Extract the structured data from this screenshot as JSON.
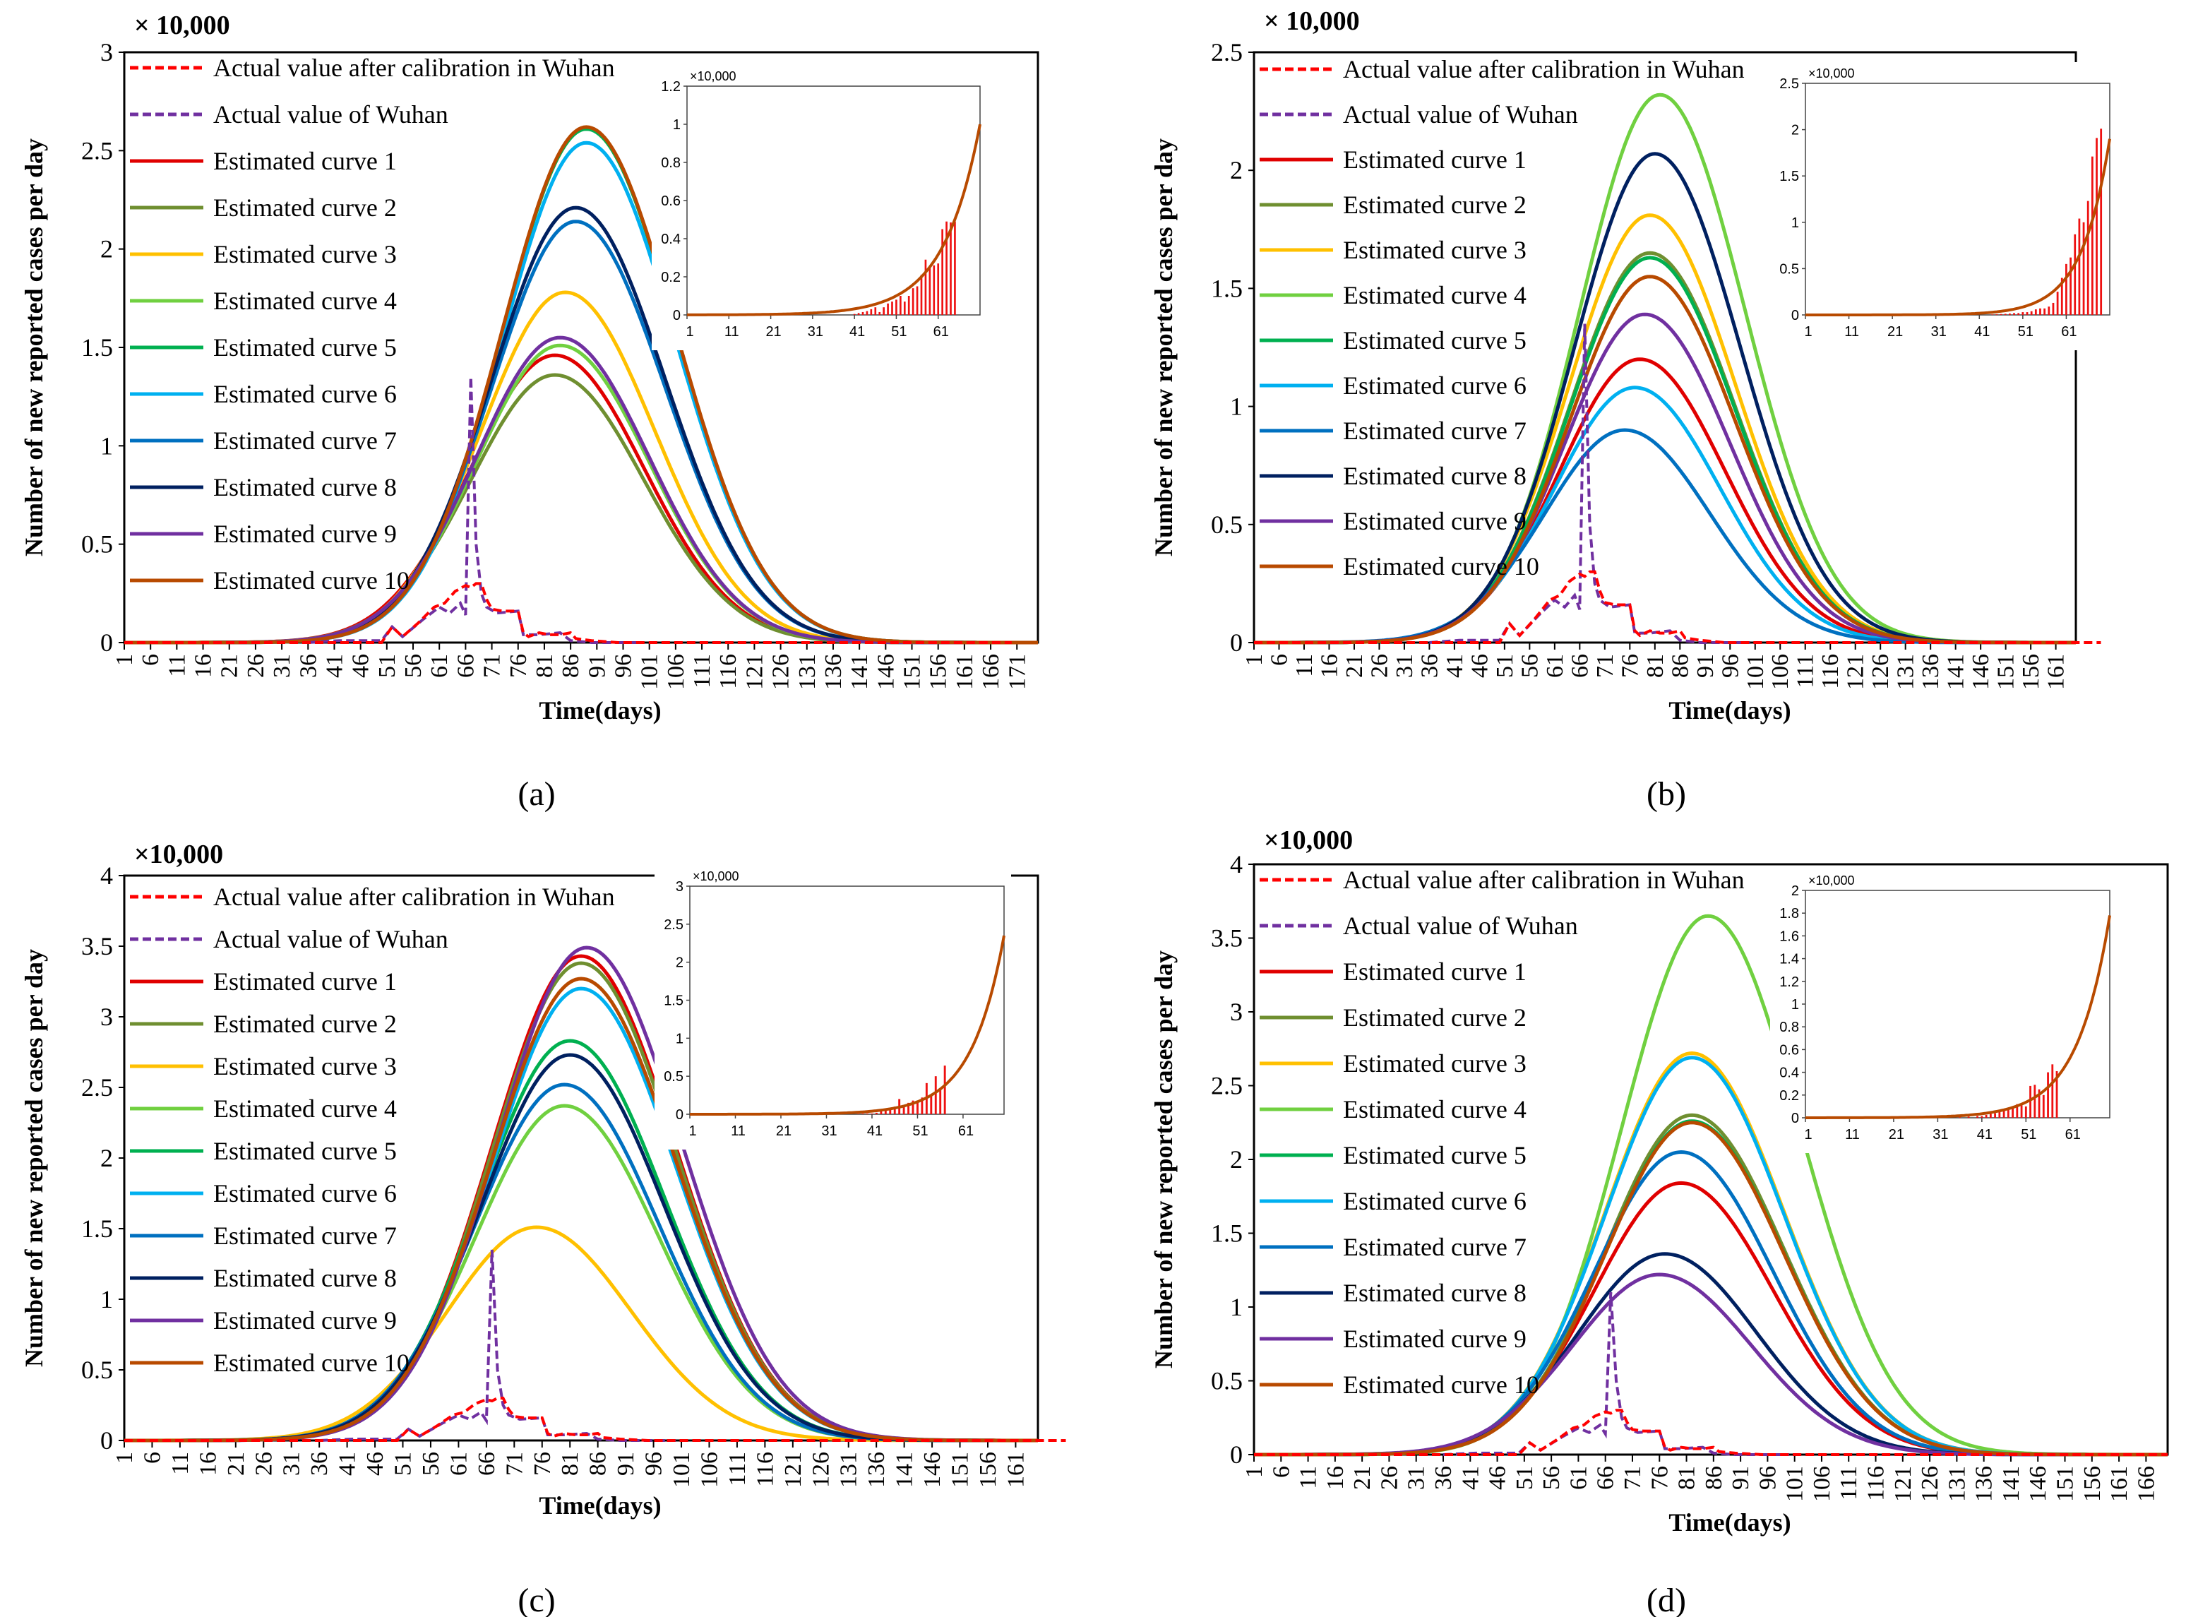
{
  "legend_labels": [
    "Actual value after calibration in Wuhan",
    "Actual value of Wuhan",
    "Estimated curve 1",
    "Estimated curve 2",
    "Estimated curve 3",
    "Estimated curve 4",
    "Estimated curve 5",
    "Estimated curve 6",
    "Estimated curve 7",
    "Estimated curve 8",
    "Estimated curve 9",
    "Estimated curve 10"
  ],
  "colors": {
    "calibrated": "#ff0000",
    "actual": "#7030a0",
    "curves": [
      "#e00000",
      "#6f8f30",
      "#ffc000",
      "#70d040",
      "#00b050",
      "#00b0f0",
      "#0070c0",
      "#002060",
      "#7030a0",
      "#b84a00"
    ],
    "bars": "#ee1111"
  },
  "chart_data": [
    {
      "type": "line",
      "panel": "(a)",
      "scale_label": "× 10,000",
      "xlabel": "Time(days)",
      "ylabel": "Number of new reported cases per day",
      "xlim": [
        1,
        175
      ],
      "ylim": [
        0,
        3
      ],
      "yticks": [
        "0",
        "0.5",
        "1",
        "1.5",
        "2",
        "2.5",
        "3"
      ],
      "xticks": [
        1,
        6,
        11,
        16,
        21,
        26,
        31,
        36,
        41,
        46,
        51,
        56,
        61,
        66,
        71,
        76,
        81,
        86,
        91,
        96,
        101,
        106,
        111,
        116,
        121,
        126,
        131,
        136,
        141,
        146,
        151,
        156,
        161,
        166,
        171
      ],
      "estimated_peaks": [
        {
          "day": 83,
          "value": 1.46
        },
        {
          "day": 83,
          "value": 1.36
        },
        {
          "day": 85,
          "value": 1.78
        },
        {
          "day": 84,
          "value": 1.51
        },
        {
          "day": 89,
          "value": 2.61
        },
        {
          "day": 89,
          "value": 2.54
        },
        {
          "day": 87,
          "value": 2.14
        },
        {
          "day": 87,
          "value": 2.21
        },
        {
          "day": 84,
          "value": 1.55
        },
        {
          "day": 89,
          "value": 2.62
        }
      ],
      "spike": 1.35,
      "inset": {
        "scale_label": "×10,000",
        "ylim": [
          0,
          1.2
        ],
        "yticks": [
          "0",
          "0.2",
          "0.4",
          "0.6",
          "0.8",
          "1",
          "1.2"
        ],
        "xlim": [
          1,
          71
        ],
        "xticks": [
          1,
          11,
          21,
          31,
          41,
          51,
          61
        ],
        "curve_end": 1.0,
        "growth": 0.115,
        "bars": [
          [
            41,
            0.005
          ],
          [
            42,
            0.01
          ],
          [
            43,
            0.015
          ],
          [
            44,
            0.02
          ],
          [
            45,
            0.03
          ],
          [
            46,
            0.04
          ],
          [
            47,
            0.015
          ],
          [
            48,
            0.04
          ],
          [
            49,
            0.06
          ],
          [
            50,
            0.07
          ],
          [
            51,
            0.08
          ],
          [
            52,
            0.1
          ],
          [
            53,
            0.07
          ],
          [
            54,
            0.1
          ],
          [
            55,
            0.14
          ],
          [
            56,
            0.15
          ],
          [
            57,
            0.21
          ],
          [
            58,
            0.29
          ],
          [
            59,
            0.25
          ],
          [
            60,
            0.26
          ],
          [
            61,
            0.27
          ],
          [
            62,
            0.45
          ],
          [
            63,
            0.49
          ],
          [
            64,
            0.485
          ],
          [
            65,
            0.49
          ]
        ]
      }
    },
    {
      "type": "line",
      "panel": "(b)",
      "scale_label": "× 10,000",
      "xlabel": "Time(days)",
      "ylabel": "Number of new reported cases per day",
      "xlim": [
        1,
        165
      ],
      "ylim": [
        0,
        2.5
      ],
      "yticks": [
        "0",
        "0.5",
        "1",
        "1.5",
        "2",
        "2.5"
      ],
      "xticks": [
        1,
        6,
        11,
        16,
        21,
        26,
        31,
        36,
        41,
        46,
        51,
        56,
        61,
        66,
        71,
        76,
        81,
        86,
        91,
        96,
        101,
        106,
        111,
        116,
        121,
        126,
        131,
        136,
        141,
        146,
        151,
        156,
        161
      ],
      "estimated_peaks": [
        {
          "day": 78,
          "value": 1.2
        },
        {
          "day": 80,
          "value": 1.65
        },
        {
          "day": 80,
          "value": 1.81
        },
        {
          "day": 82,
          "value": 2.32
        },
        {
          "day": 80,
          "value": 1.63
        },
        {
          "day": 77,
          "value": 1.08
        },
        {
          "day": 75,
          "value": 0.9
        },
        {
          "day": 81,
          "value": 2.07
        },
        {
          "day": 79,
          "value": 1.39
        },
        {
          "day": 80,
          "value": 1.55
        }
      ],
      "spike": 1.35,
      "inset": {
        "scale_label": "×10,000",
        "ylim": [
          0,
          2.5
        ],
        "yticks": [
          "0",
          "0.5",
          "1",
          "1.5",
          "2",
          "2.5"
        ],
        "xlim": [
          1,
          71
        ],
        "xticks": [
          1,
          11,
          21,
          31,
          41,
          51,
          61
        ],
        "curve_end": 1.9,
        "growth": 0.155,
        "bars": [
          [
            44,
            0.005
          ],
          [
            45,
            0.007
          ],
          [
            46,
            0.01
          ],
          [
            47,
            0.012
          ],
          [
            48,
            0.015
          ],
          [
            49,
            0.02
          ],
          [
            50,
            0.02
          ],
          [
            51,
            0.03
          ],
          [
            52,
            0.03
          ],
          [
            53,
            0.04
          ],
          [
            54,
            0.06
          ],
          [
            55,
            0.07
          ],
          [
            56,
            0.07
          ],
          [
            57,
            0.09
          ],
          [
            58,
            0.13
          ],
          [
            59,
            0.25
          ],
          [
            60,
            0.4
          ],
          [
            61,
            0.55
          ],
          [
            62,
            0.62
          ],
          [
            63,
            0.87
          ],
          [
            64,
            1.04
          ],
          [
            65,
            1.0
          ],
          [
            66,
            1.23
          ],
          [
            67,
            1.71
          ],
          [
            68,
            1.91
          ],
          [
            69,
            2.01
          ]
        ]
      }
    },
    {
      "type": "line",
      "panel": "(c)",
      "scale_label": "×10,000",
      "xlabel": "Time(days)",
      "ylabel": "Number of new reported cases per day",
      "xlim": [
        1,
        165
      ],
      "ylim": [
        0,
        4
      ],
      "yticks": [
        "0",
        "0.5",
        "1",
        "1.5",
        "2",
        "2.5",
        "3",
        "3.5",
        "4"
      ],
      "xticks": [
        1,
        6,
        11,
        16,
        21,
        26,
        31,
        36,
        41,
        46,
        51,
        56,
        61,
        66,
        71,
        76,
        81,
        86,
        91,
        96,
        101,
        106,
        111,
        116,
        121,
        126,
        131,
        136,
        141,
        146,
        151,
        156,
        161
      ],
      "estimated_peaks": [
        {
          "day": 83,
          "value": 3.43
        },
        {
          "day": 83,
          "value": 3.38
        },
        {
          "day": 75,
          "value": 1.51
        },
        {
          "day": 80,
          "value": 2.37
        },
        {
          "day": 81,
          "value": 2.83
        },
        {
          "day": 83,
          "value": 3.2
        },
        {
          "day": 80,
          "value": 2.52
        },
        {
          "day": 81,
          "value": 2.73
        },
        {
          "day": 84,
          "value": 3.49
        },
        {
          "day": 83,
          "value": 3.27
        }
      ],
      "spike": 1.35,
      "inset": {
        "scale_label": "×10,000",
        "ylim": [
          0,
          3
        ],
        "yticks": [
          "0",
          "0.5",
          "1",
          "1.5",
          "2",
          "2.5",
          "3"
        ],
        "xlim": [
          1,
          70
        ],
        "xticks": [
          1,
          11,
          21,
          31,
          41,
          51,
          61
        ],
        "curve_end": 2.35,
        "growth": 0.14,
        "bars": [
          [
            38,
            0.005
          ],
          [
            39,
            0.008
          ],
          [
            40,
            0.01
          ],
          [
            41,
            0.01
          ],
          [
            42,
            0.02
          ],
          [
            43,
            0.04
          ],
          [
            44,
            0.06
          ],
          [
            45,
            0.06
          ],
          [
            46,
            0.1
          ],
          [
            47,
            0.2
          ],
          [
            48,
            0.12
          ],
          [
            49,
            0.15
          ],
          [
            50,
            0.18
          ],
          [
            51,
            0.18
          ],
          [
            52,
            0.22
          ],
          [
            53,
            0.41
          ],
          [
            54,
            0.25
          ],
          [
            55,
            0.5
          ],
          [
            56,
            0.34
          ],
          [
            57,
            0.64
          ]
        ]
      }
    },
    {
      "type": "line",
      "panel": "(d)",
      "scale_label": "×10,000",
      "xlabel": "Time(days)",
      "ylabel": "Number of new reported cases per day",
      "xlim": [
        1,
        170
      ],
      "ylim": [
        0,
        4
      ],
      "yticks": [
        "0",
        "0.5",
        "1",
        "1.5",
        "2",
        "2.5",
        "3",
        "3.5",
        "4"
      ],
      "xticks": [
        1,
        6,
        11,
        16,
        21,
        26,
        31,
        36,
        41,
        46,
        51,
        56,
        61,
        66,
        71,
        76,
        81,
        86,
        91,
        96,
        101,
        106,
        111,
        116,
        121,
        126,
        131,
        136,
        141,
        146,
        151,
        156,
        161,
        166
      ],
      "estimated_peaks": [
        {
          "day": 80,
          "value": 1.84
        },
        {
          "day": 82,
          "value": 2.3
        },
        {
          "day": 82,
          "value": 2.72
        },
        {
          "day": 85,
          "value": 3.65
        },
        {
          "day": 82,
          "value": 2.26
        },
        {
          "day": 82,
          "value": 2.69
        },
        {
          "day": 80,
          "value": 2.05
        },
        {
          "day": 77,
          "value": 1.36
        },
        {
          "day": 76,
          "value": 1.22
        },
        {
          "day": 82,
          "value": 2.25
        }
      ],
      "spike": 1.1,
      "inset": {
        "scale_label": "×10,000",
        "ylim": [
          0,
          2
        ],
        "yticks": [
          "0",
          "0.2",
          "0.4",
          "0.6",
          "0.8",
          "1",
          "1.2",
          "1.4",
          "1.6",
          "1.8",
          "2"
        ],
        "xlim": [
          1,
          70
        ],
        "xticks": [
          1,
          11,
          21,
          31,
          41,
          51,
          61
        ],
        "curve_end": 1.78,
        "growth": 0.135,
        "bars": [
          [
            36,
            0.005
          ],
          [
            38,
            0.01
          ],
          [
            40,
            0.015
          ],
          [
            41,
            0.015
          ],
          [
            42,
            0.025
          ],
          [
            43,
            0.035
          ],
          [
            44,
            0.04
          ],
          [
            45,
            0.05
          ],
          [
            46,
            0.07
          ],
          [
            47,
            0.075
          ],
          [
            48,
            0.1
          ],
          [
            49,
            0.12
          ],
          [
            50,
            0.11
          ],
          [
            51,
            0.1
          ],
          [
            52,
            0.28
          ],
          [
            53,
            0.29
          ],
          [
            54,
            0.25
          ],
          [
            55,
            0.2
          ],
          [
            56,
            0.4
          ],
          [
            57,
            0.47
          ],
          [
            58,
            0.41
          ]
        ]
      }
    }
  ],
  "actual_calibrated": [
    [
      1,
      0
    ],
    [
      50,
      0
    ],
    [
      52,
      0.08
    ],
    [
      54,
      0.03
    ],
    [
      57,
      0.1
    ],
    [
      60,
      0.18
    ],
    [
      62,
      0.2
    ],
    [
      64,
      0.26
    ],
    [
      66,
      0.29
    ],
    [
      67,
      0.28
    ],
    [
      68,
      0.3
    ],
    [
      69,
      0.3
    ],
    [
      70,
      0.22
    ],
    [
      71,
      0.17
    ],
    [
      73,
      0.16
    ],
    [
      76,
      0.16
    ],
    [
      77,
      0.05
    ],
    [
      78,
      0.03
    ],
    [
      80,
      0.05
    ],
    [
      82,
      0.04
    ],
    [
      84,
      0.04
    ],
    [
      86,
      0.05
    ],
    [
      87,
      0.02
    ],
    [
      90,
      0.01
    ],
    [
      95,
      0
    ],
    [
      170,
      0
    ]
  ],
  "actual_wuhan": [
    [
      36,
      0
    ],
    [
      42,
      0.01
    ],
    [
      50,
      0.01
    ],
    [
      52,
      0.08
    ],
    [
      54,
      0.03
    ],
    [
      58,
      0.12
    ],
    [
      61,
      0.18
    ],
    [
      63,
      0.15
    ],
    [
      65,
      0.2
    ],
    [
      66,
      0.14
    ],
    [
      67,
      "spike"
    ],
    [
      68,
      0.5
    ],
    [
      69,
      0.25
    ],
    [
      70,
      0.18
    ],
    [
      72,
      0.15
    ],
    [
      76,
      0.16
    ],
    [
      77,
      0.04
    ],
    [
      80,
      0.04
    ],
    [
      84,
      0.05
    ],
    [
      86,
      0.01
    ],
    [
      90,
      0
    ],
    [
      100,
      0
    ]
  ]
}
